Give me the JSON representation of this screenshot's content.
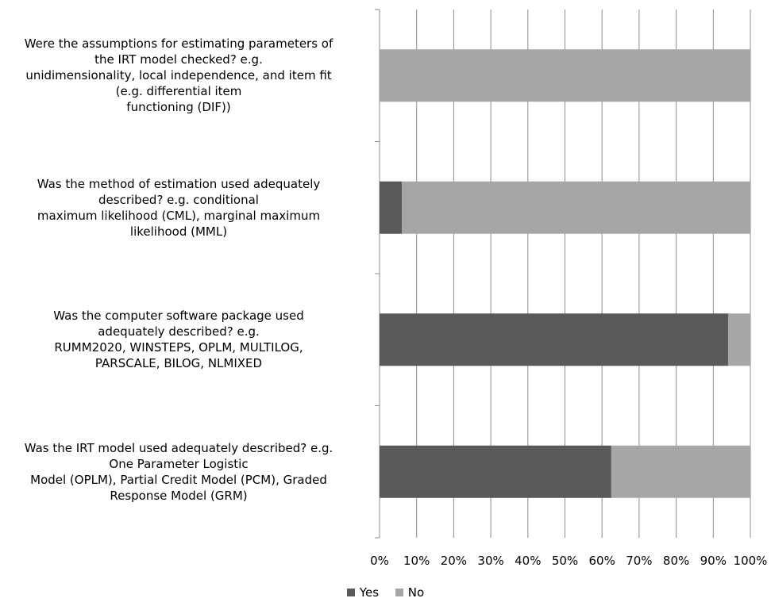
{
  "chart_data": {
    "type": "bar",
    "orientation": "horizontal",
    "stacked": "percent",
    "categories": [
      [
        "Were the assumptions for estimating parameters of",
        "the IRT model checked? e.g.",
        "unidimensionality, local independence, and item fit",
        "(e.g. differential item",
        "functioning (DIF))"
      ],
      [
        "Was the method of estimation used adequately",
        "described? e.g. conditional",
        "maximum likelihood (CML), marginal maximum",
        "likelihood (MML)"
      ],
      [
        "Was the computer software package used",
        "adequately described? e.g.",
        "RUMM2020, WINSTEPS, OPLM, MULTILOG,",
        "PARSCALE, BILOG, NLMIXED"
      ],
      [
        "Was the IRT model used adequately described? e.g.",
        "One Parameter Logistic",
        "Model (OPLM), Partial Credit Model (PCM), Graded",
        "Response Model (GRM)"
      ]
    ],
    "series": [
      {
        "name": "Yes",
        "color": "#595959",
        "values": [
          0,
          6,
          94,
          62.5
        ]
      },
      {
        "name": "No",
        "color": "#a6a6a6",
        "values": [
          100,
          94,
          6,
          37.5
        ]
      }
    ],
    "xticks": [
      "0%",
      "10%",
      "20%",
      "30%",
      "40%",
      "50%",
      "60%",
      "70%",
      "80%",
      "90%",
      "100%"
    ],
    "xlim": [
      0,
      100
    ],
    "grid": "vertical",
    "legend": "bottom"
  }
}
